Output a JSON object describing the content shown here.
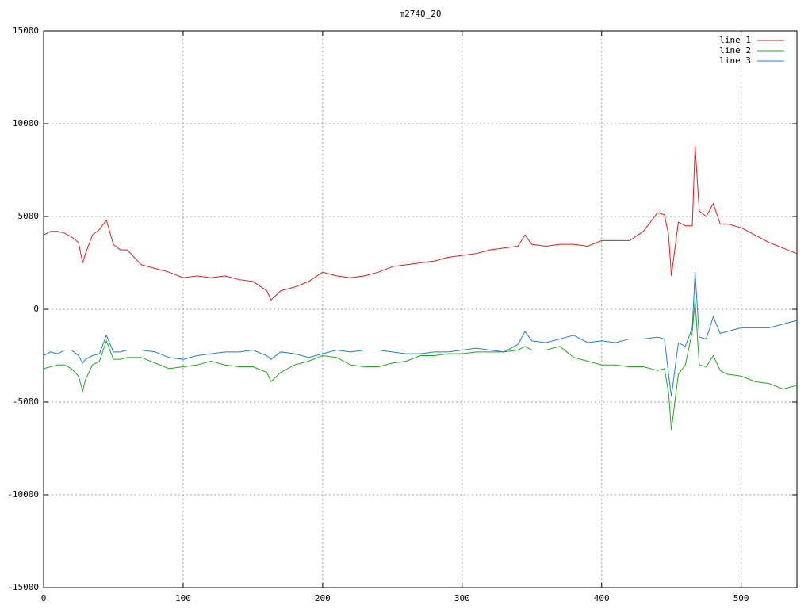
{
  "chart_data": {
    "type": "line",
    "title": "m2740_20",
    "x": [
      0,
      5,
      10,
      15,
      20,
      25,
      28,
      30,
      35,
      40,
      45,
      50,
      55,
      60,
      70,
      80,
      90,
      100,
      110,
      120,
      130,
      140,
      150,
      160,
      163,
      170,
      180,
      190,
      200,
      210,
      220,
      230,
      240,
      250,
      260,
      270,
      280,
      290,
      300,
      310,
      320,
      330,
      340,
      345,
      350,
      360,
      370,
      380,
      390,
      400,
      410,
      420,
      430,
      440,
      445,
      448,
      450,
      455,
      460,
      465,
      467,
      470,
      475,
      480,
      485,
      490,
      500,
      510,
      520,
      530,
      540
    ],
    "series": [
      {
        "name": "line 1",
        "color": "#e41a1c",
        "values": [
          4000,
          4200,
          4200,
          4100,
          3900,
          3600,
          2500,
          3000,
          4000,
          4300,
          4800,
          3500,
          3200,
          3200,
          2400,
          2200,
          2000,
          1700,
          1800,
          1700,
          1800,
          1600,
          1500,
          1000,
          500,
          1000,
          1200,
          1500,
          2000,
          1800,
          1700,
          1800,
          2000,
          2300,
          2400,
          2500,
          2600,
          2800,
          2900,
          3000,
          3200,
          3300,
          3400,
          4000,
          3500,
          3400,
          3500,
          3500,
          3400,
          3700,
          3700,
          3700,
          4200,
          5200,
          5100,
          4000,
          1800,
          4700,
          4500,
          4500,
          8800,
          5300,
          5000,
          5700,
          4600,
          4600,
          4400,
          4000,
          3600,
          3300,
          3000
        ]
      },
      {
        "name": "line 2",
        "color": "#1fa81f",
        "values": [
          -3200,
          -3100,
          -3000,
          -3000,
          -3200,
          -3600,
          -4400,
          -3800,
          -3000,
          -2800,
          -1700,
          -2700,
          -2700,
          -2600,
          -2600,
          -2900,
          -3200,
          -3100,
          -3000,
          -2800,
          -3000,
          -3100,
          -3100,
          -3400,
          -3900,
          -3400,
          -3000,
          -2800,
          -2500,
          -2600,
          -3000,
          -3100,
          -3100,
          -2900,
          -2800,
          -2500,
          -2500,
          -2400,
          -2400,
          -2300,
          -2300,
          -2300,
          -2200,
          -2000,
          -2200,
          -2200,
          -2000,
          -2600,
          -2800,
          -3000,
          -3000,
          -3100,
          -3100,
          -3300,
          -3200,
          -4500,
          -6500,
          -3500,
          -3000,
          -1200,
          500,
          -3000,
          -3100,
          -2500,
          -3300,
          -3500,
          -3600,
          -3900,
          -4000,
          -4300,
          -4100
        ]
      },
      {
        "name": "line 3",
        "color": "#1c7fd1",
        "values": [
          -2500,
          -2300,
          -2400,
          -2200,
          -2200,
          -2500,
          -2900,
          -2700,
          -2500,
          -2400,
          -1400,
          -2300,
          -2300,
          -2200,
          -2200,
          -2300,
          -2600,
          -2700,
          -2500,
          -2400,
          -2300,
          -2300,
          -2200,
          -2500,
          -2700,
          -2300,
          -2400,
          -2600,
          -2400,
          -2200,
          -2300,
          -2200,
          -2200,
          -2300,
          -2400,
          -2400,
          -2300,
          -2300,
          -2200,
          -2100,
          -2200,
          -2300,
          -1900,
          -1200,
          -1700,
          -1800,
          -1600,
          -1400,
          -1800,
          -1700,
          -1800,
          -1600,
          -1600,
          -1500,
          -1600,
          -3500,
          -4700,
          -1800,
          -2000,
          -1000,
          2000,
          -1500,
          -1600,
          -400,
          -1300,
          -1200,
          -1000,
          -1000,
          -1000,
          -800,
          -600
        ]
      }
    ],
    "xlim": [
      0,
      540
    ],
    "xticks": [
      0,
      100,
      200,
      300,
      400,
      500
    ],
    "ylim": [
      -15000,
      15000
    ],
    "yticks": [
      -15000,
      -10000,
      -5000,
      0,
      5000,
      10000,
      15000
    ],
    "grid": true,
    "legend": "upper right"
  }
}
